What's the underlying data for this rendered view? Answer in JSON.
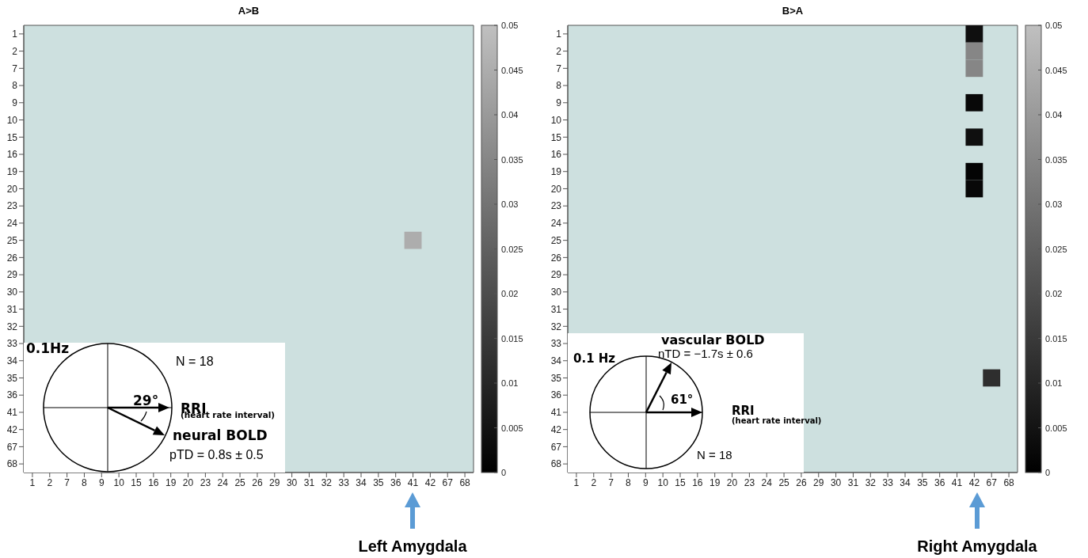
{
  "chart_data": [
    {
      "type": "heatmap",
      "title": "A>B",
      "categories": [
        "1",
        "2",
        "7",
        "8",
        "9",
        "10",
        "15",
        "16",
        "19",
        "20",
        "23",
        "24",
        "25",
        "26",
        "29",
        "30",
        "31",
        "32",
        "33",
        "34",
        "35",
        "36",
        "41",
        "42",
        "67",
        "68"
      ],
      "y_categories": [
        "1",
        "2",
        "7",
        "8",
        "9",
        "10",
        "15",
        "16",
        "19",
        "20",
        "23",
        "24",
        "25",
        "26",
        "29",
        "30",
        "31",
        "32",
        "33",
        "34",
        "35",
        "36",
        "41",
        "42",
        "67",
        "68"
      ],
      "cells": [
        [
          null,
          null,
          null,
          null,
          null,
          null,
          null,
          null,
          null,
          null,
          null,
          null,
          null,
          null,
          null,
          null,
          null,
          null,
          null,
          null,
          null,
          null,
          null,
          null,
          null,
          null
        ],
        [
          null,
          null,
          null,
          null,
          null,
          null,
          null,
          null,
          null,
          null,
          null,
          null,
          null,
          null,
          null,
          null,
          null,
          null,
          null,
          null,
          null,
          null,
          null,
          null,
          null,
          null
        ],
        [
          null,
          null,
          null,
          null,
          null,
          null,
          null,
          null,
          null,
          null,
          null,
          null,
          null,
          null,
          null,
          null,
          null,
          null,
          null,
          null,
          null,
          null,
          null,
          null,
          null,
          null
        ],
        [
          null,
          null,
          null,
          null,
          null,
          null,
          null,
          null,
          null,
          null,
          null,
          null,
          null,
          null,
          null,
          null,
          null,
          null,
          null,
          null,
          null,
          null,
          null,
          null,
          null,
          null
        ],
        [
          null,
          null,
          null,
          null,
          null,
          null,
          null,
          null,
          null,
          null,
          null,
          null,
          null,
          null,
          null,
          null,
          null,
          null,
          null,
          null,
          null,
          null,
          null,
          null,
          null,
          null
        ],
        [
          null,
          null,
          null,
          null,
          null,
          null,
          null,
          null,
          null,
          null,
          null,
          null,
          null,
          null,
          null,
          null,
          null,
          null,
          null,
          null,
          null,
          null,
          null,
          null,
          null,
          null
        ],
        [
          null,
          null,
          null,
          null,
          null,
          null,
          null,
          null,
          null,
          null,
          null,
          null,
          null,
          null,
          null,
          null,
          null,
          null,
          null,
          null,
          null,
          null,
          null,
          null,
          null,
          null
        ],
        [
          null,
          null,
          null,
          null,
          null,
          null,
          null,
          null,
          null,
          null,
          null,
          null,
          null,
          null,
          null,
          null,
          null,
          null,
          null,
          null,
          null,
          null,
          null,
          null,
          null,
          null
        ],
        [
          null,
          null,
          null,
          null,
          null,
          null,
          null,
          null,
          null,
          null,
          null,
          null,
          null,
          null,
          null,
          null,
          null,
          null,
          null,
          null,
          null,
          null,
          null,
          null,
          null,
          null
        ],
        [
          null,
          null,
          null,
          null,
          null,
          null,
          null,
          null,
          null,
          null,
          null,
          null,
          null,
          null,
          null,
          null,
          null,
          null,
          null,
          null,
          null,
          null,
          null,
          null,
          null,
          null
        ],
        [
          null,
          null,
          null,
          null,
          null,
          null,
          null,
          null,
          null,
          null,
          null,
          null,
          null,
          null,
          null,
          null,
          null,
          null,
          null,
          null,
          null,
          null,
          null,
          null,
          null,
          null
        ],
        [
          null,
          null,
          null,
          null,
          null,
          null,
          null,
          null,
          null,
          null,
          null,
          null,
          null,
          null,
          null,
          null,
          null,
          null,
          null,
          null,
          null,
          null,
          null,
          null,
          null,
          null
        ],
        [
          null,
          null,
          null,
          null,
          null,
          null,
          null,
          null,
          null,
          null,
          null,
          null,
          null,
          null,
          null,
          null,
          null,
          null,
          null,
          null,
          null,
          null,
          0.045,
          null,
          null,
          null
        ],
        [
          null,
          null,
          null,
          null,
          null,
          null,
          null,
          null,
          null,
          null,
          null,
          null,
          null,
          null,
          null,
          null,
          null,
          null,
          null,
          null,
          null,
          null,
          null,
          null,
          null,
          null
        ],
        [
          null,
          null,
          null,
          null,
          null,
          null,
          null,
          null,
          null,
          null,
          null,
          null,
          null,
          null,
          null,
          null,
          null,
          null,
          null,
          null,
          null,
          null,
          null,
          null,
          null,
          null
        ],
        [
          null,
          null,
          null,
          null,
          null,
          null,
          null,
          null,
          null,
          null,
          null,
          null,
          null,
          null,
          null,
          null,
          null,
          null,
          null,
          null,
          null,
          null,
          null,
          null,
          null,
          null
        ],
        [
          null,
          null,
          null,
          null,
          null,
          null,
          null,
          null,
          null,
          null,
          null,
          null,
          null,
          null,
          null,
          null,
          null,
          null,
          null,
          null,
          null,
          null,
          null,
          null,
          null,
          null
        ],
        [
          null,
          null,
          null,
          null,
          null,
          null,
          null,
          null,
          null,
          null,
          null,
          null,
          null,
          null,
          null,
          null,
          null,
          null,
          null,
          null,
          null,
          null,
          null,
          null,
          null,
          null
        ],
        [
          null,
          null,
          null,
          null,
          null,
          null,
          null,
          null,
          null,
          null,
          null,
          null,
          null,
          null,
          null,
          null,
          null,
          null,
          null,
          null,
          null,
          null,
          null,
          null,
          null,
          null
        ],
        [
          null,
          null,
          null,
          null,
          null,
          null,
          null,
          null,
          null,
          null,
          null,
          null,
          null,
          null,
          null,
          null,
          null,
          null,
          null,
          null,
          null,
          null,
          null,
          null,
          null,
          null
        ],
        [
          null,
          null,
          null,
          null,
          null,
          null,
          null,
          null,
          null,
          null,
          null,
          null,
          null,
          null,
          null,
          null,
          null,
          null,
          null,
          null,
          null,
          null,
          null,
          null,
          null,
          null
        ],
        [
          null,
          null,
          null,
          null,
          null,
          null,
          null,
          null,
          null,
          null,
          null,
          null,
          null,
          null,
          null,
          null,
          null,
          null,
          null,
          null,
          null,
          null,
          null,
          null,
          null,
          null
        ],
        [
          null,
          null,
          null,
          null,
          null,
          null,
          null,
          null,
          null,
          null,
          null,
          null,
          null,
          null,
          null,
          null,
          null,
          null,
          null,
          null,
          null,
          null,
          null,
          null,
          null,
          null
        ],
        [
          null,
          null,
          null,
          null,
          null,
          null,
          null,
          null,
          null,
          null,
          null,
          null,
          null,
          null,
          null,
          null,
          null,
          null,
          null,
          null,
          null,
          null,
          null,
          null,
          null,
          null
        ],
        [
          null,
          null,
          null,
          null,
          null,
          null,
          null,
          null,
          null,
          null,
          null,
          null,
          null,
          null,
          null,
          null,
          null,
          null,
          null,
          null,
          null,
          null,
          null,
          null,
          null,
          null
        ],
        [
          null,
          null,
          null,
          null,
          null,
          null,
          null,
          null,
          null,
          null,
          null,
          null,
          null,
          null,
          null,
          null,
          null,
          null,
          null,
          null,
          null,
          null,
          null,
          null,
          null,
          null
        ]
      ],
      "clim": [
        0,
        0.05
      ],
      "cticks": [
        0,
        0.005,
        0.01,
        0.015,
        0.02,
        0.025,
        0.03,
        0.035,
        0.04,
        0.045,
        0.05
      ],
      "annotations": [
        "0.1Hz",
        "N = 18",
        "29°",
        "RRI",
        "(heart rate interval)",
        "neural BOLD",
        "pTD = 0.8s ± 0.5",
        "Left Amygdala"
      ]
    },
    {
      "type": "heatmap",
      "title": "B>A",
      "categories": [
        "1",
        "2",
        "7",
        "8",
        "9",
        "10",
        "15",
        "16",
        "19",
        "20",
        "23",
        "24",
        "25",
        "26",
        "29",
        "30",
        "31",
        "32",
        "33",
        "34",
        "35",
        "36",
        "41",
        "42",
        "67",
        "68"
      ],
      "y_categories": [
        "1",
        "2",
        "7",
        "8",
        "9",
        "10",
        "15",
        "16",
        "19",
        "20",
        "23",
        "24",
        "25",
        "26",
        "29",
        "30",
        "31",
        "32",
        "33",
        "34",
        "35",
        "36",
        "41",
        "42",
        "67",
        "68"
      ],
      "cells": [
        [
          null,
          null,
          null,
          null,
          null,
          null,
          null,
          null,
          null,
          null,
          null,
          null,
          null,
          null,
          null,
          null,
          null,
          null,
          null,
          null,
          null,
          null,
          null,
          0.004,
          null,
          null
        ],
        [
          null,
          null,
          null,
          null,
          null,
          null,
          null,
          null,
          null,
          null,
          null,
          null,
          null,
          null,
          null,
          null,
          null,
          null,
          null,
          null,
          null,
          null,
          null,
          0.035,
          null,
          null
        ],
        [
          null,
          null,
          null,
          null,
          null,
          null,
          null,
          null,
          null,
          null,
          null,
          null,
          null,
          null,
          null,
          null,
          null,
          null,
          null,
          null,
          null,
          null,
          null,
          0.035,
          null,
          null
        ],
        [
          null,
          null,
          null,
          null,
          null,
          null,
          null,
          null,
          null,
          null,
          null,
          null,
          null,
          null,
          null,
          null,
          null,
          null,
          null,
          null,
          null,
          null,
          null,
          null,
          null,
          null
        ],
        [
          null,
          null,
          null,
          null,
          null,
          null,
          null,
          null,
          null,
          null,
          null,
          null,
          null,
          null,
          null,
          null,
          null,
          null,
          null,
          null,
          null,
          null,
          null,
          0.002,
          null,
          null
        ],
        [
          null,
          null,
          null,
          null,
          null,
          null,
          null,
          null,
          null,
          null,
          null,
          null,
          null,
          null,
          null,
          null,
          null,
          null,
          null,
          null,
          null,
          null,
          null,
          null,
          null,
          null
        ],
        [
          null,
          null,
          null,
          null,
          null,
          null,
          null,
          null,
          null,
          null,
          null,
          null,
          null,
          null,
          null,
          null,
          null,
          null,
          null,
          null,
          null,
          null,
          null,
          0.004,
          null,
          null
        ],
        [
          null,
          null,
          null,
          null,
          null,
          null,
          null,
          null,
          null,
          null,
          null,
          null,
          null,
          null,
          null,
          null,
          null,
          null,
          null,
          null,
          null,
          null,
          null,
          null,
          null,
          null
        ],
        [
          null,
          null,
          null,
          null,
          null,
          null,
          null,
          null,
          null,
          null,
          null,
          null,
          null,
          null,
          null,
          null,
          null,
          null,
          null,
          null,
          null,
          null,
          null,
          0.001,
          null,
          null
        ],
        [
          null,
          null,
          null,
          null,
          null,
          null,
          null,
          null,
          null,
          null,
          null,
          null,
          null,
          null,
          null,
          null,
          null,
          null,
          null,
          null,
          null,
          null,
          null,
          0.002,
          null,
          null
        ],
        [
          null,
          null,
          null,
          null,
          null,
          null,
          null,
          null,
          null,
          null,
          null,
          null,
          null,
          null,
          null,
          null,
          null,
          null,
          null,
          null,
          null,
          null,
          null,
          null,
          null,
          null
        ],
        [
          null,
          null,
          null,
          null,
          null,
          null,
          null,
          null,
          null,
          null,
          null,
          null,
          null,
          null,
          null,
          null,
          null,
          null,
          null,
          null,
          null,
          null,
          null,
          null,
          null,
          null
        ],
        [
          null,
          null,
          null,
          null,
          null,
          null,
          null,
          null,
          null,
          null,
          null,
          null,
          null,
          null,
          null,
          null,
          null,
          null,
          null,
          null,
          null,
          null,
          null,
          null,
          null,
          null
        ],
        [
          null,
          null,
          null,
          null,
          null,
          null,
          null,
          null,
          null,
          null,
          null,
          null,
          null,
          null,
          null,
          null,
          null,
          null,
          null,
          null,
          null,
          null,
          null,
          null,
          null,
          null
        ],
        [
          null,
          null,
          null,
          null,
          null,
          null,
          null,
          null,
          null,
          null,
          null,
          null,
          null,
          null,
          null,
          null,
          null,
          null,
          null,
          null,
          null,
          null,
          null,
          null,
          null,
          null
        ],
        [
          null,
          null,
          null,
          null,
          null,
          null,
          null,
          null,
          null,
          null,
          null,
          null,
          null,
          null,
          null,
          null,
          null,
          null,
          null,
          null,
          null,
          null,
          null,
          null,
          null,
          null
        ],
        [
          null,
          null,
          null,
          null,
          null,
          null,
          null,
          null,
          null,
          null,
          null,
          null,
          null,
          null,
          null,
          null,
          null,
          null,
          null,
          null,
          null,
          null,
          null,
          null,
          null,
          null
        ],
        [
          null,
          null,
          null,
          null,
          null,
          null,
          null,
          null,
          null,
          null,
          null,
          null,
          null,
          null,
          null,
          null,
          null,
          null,
          null,
          null,
          null,
          null,
          null,
          null,
          null,
          null
        ],
        [
          null,
          null,
          null,
          null,
          null,
          null,
          null,
          null,
          null,
          null,
          null,
          null,
          null,
          null,
          null,
          null,
          null,
          null,
          null,
          null,
          null,
          null,
          null,
          null,
          null,
          null
        ],
        [
          null,
          null,
          null,
          null,
          null,
          null,
          null,
          null,
          null,
          null,
          null,
          null,
          null,
          null,
          null,
          null,
          null,
          null,
          null,
          null,
          null,
          null,
          null,
          null,
          null,
          null
        ],
        [
          null,
          null,
          null,
          null,
          null,
          null,
          null,
          null,
          null,
          null,
          null,
          null,
          null,
          null,
          null,
          null,
          null,
          null,
          null,
          null,
          null,
          null,
          null,
          null,
          0.012,
          null
        ],
        [
          null,
          null,
          null,
          null,
          null,
          null,
          null,
          null,
          null,
          null,
          null,
          null,
          null,
          null,
          null,
          null,
          null,
          null,
          null,
          null,
          null,
          null,
          null,
          null,
          null,
          null
        ],
        [
          null,
          null,
          null,
          null,
          null,
          null,
          null,
          null,
          null,
          null,
          null,
          null,
          null,
          null,
          null,
          null,
          null,
          null,
          null,
          null,
          null,
          null,
          null,
          null,
          null,
          null
        ],
        [
          null,
          null,
          null,
          null,
          null,
          null,
          null,
          null,
          null,
          null,
          null,
          null,
          null,
          null,
          null,
          null,
          null,
          null,
          null,
          null,
          null,
          null,
          null,
          null,
          null,
          null
        ],
        [
          null,
          null,
          null,
          null,
          null,
          null,
          null,
          null,
          null,
          null,
          null,
          null,
          null,
          null,
          null,
          null,
          null,
          null,
          null,
          null,
          null,
          null,
          null,
          null,
          null,
          null
        ],
        [
          null,
          null,
          null,
          null,
          null,
          null,
          null,
          null,
          null,
          null,
          null,
          null,
          null,
          null,
          null,
          null,
          null,
          null,
          null,
          null,
          null,
          null,
          null,
          null,
          null,
          null
        ]
      ],
      "clim": [
        0,
        0.05
      ],
      "cticks": [
        0,
        0.005,
        0.01,
        0.015,
        0.02,
        0.025,
        0.03,
        0.035,
        0.04,
        0.045,
        0.05
      ],
      "annotations": [
        "0.1 Hz",
        "vascular BOLD",
        "nTD = −1.7s ± 0.6",
        "61°",
        "RRI",
        "(heart rate interval)",
        "N = 18",
        "Right Amygdala"
      ]
    }
  ]
}
